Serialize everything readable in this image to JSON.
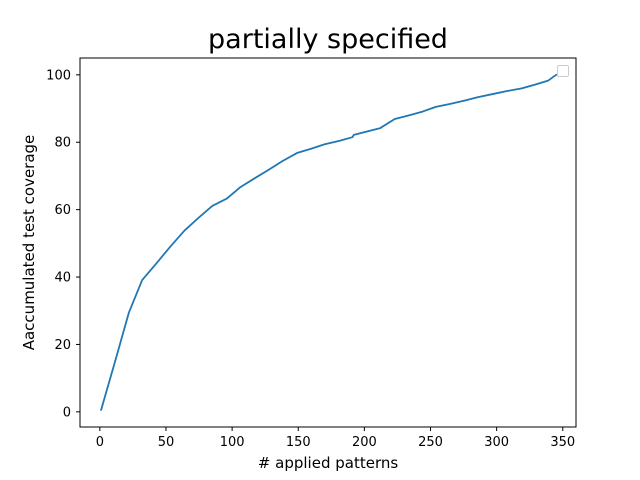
{
  "chart_data": {
    "type": "line",
    "title": "partially specified",
    "xlabel": "# applied patterns",
    "ylabel": "Aaccumulated test coverage",
    "xlim": [
      -15,
      360
    ],
    "ylim": [
      -4.5,
      105
    ],
    "xticks": [
      0,
      50,
      100,
      150,
      200,
      250,
      300,
      350
    ],
    "yticks": [
      0,
      20,
      40,
      60,
      80,
      100
    ],
    "grid": false,
    "legend": "top-right, empty",
    "series": [
      {
        "color": "#1f77b4",
        "x": [
          1,
          12,
          22,
          32,
          42,
          53,
          64,
          75,
          85,
          96,
          106,
          117,
          128,
          138,
          149,
          160,
          170,
          181,
          191,
          192,
          202,
          212,
          223,
          233,
          244,
          254,
          265,
          276,
          286,
          297,
          308,
          319,
          329,
          339,
          345
        ],
        "y": [
          0.6,
          15.6,
          29.5,
          39.1,
          43.7,
          48.9,
          53.8,
          57.7,
          61.1,
          63.3,
          66.6,
          69.3,
          71.9,
          74.4,
          76.8,
          78.1,
          79.4,
          80.4,
          81.5,
          82.2,
          83.2,
          84.2,
          86.9,
          87.9,
          89.1,
          90.5,
          91.4,
          92.4,
          93.4,
          94.3,
          95.2,
          96.0,
          97.1,
          98.3,
          100.0
        ]
      }
    ]
  }
}
